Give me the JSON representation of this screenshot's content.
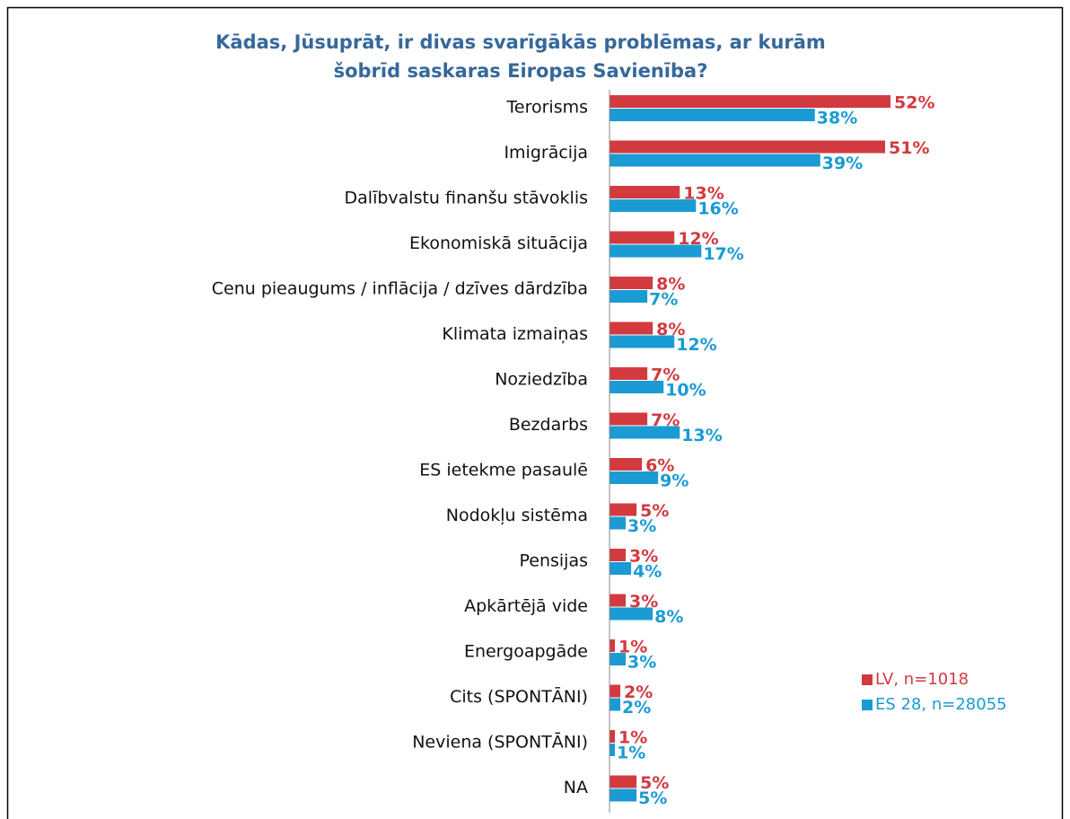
{
  "chart_data": {
    "type": "bar",
    "orientation": "horizontal",
    "title": [
      "Kādas, Jūsuprāt, ir divas svarīgākās problēmas, ar kurām",
      "šobrīd saskaras Eiropas Savienība?"
    ],
    "categories": [
      "Terorisms",
      "Imigrācija",
      "Dalībvalstu finanšu stāvoklis",
      "Ekonomiskā situācija",
      "Cenu pieaugums / inflācija / dzīves dārdzība",
      "Klimata izmaiņas",
      "Noziedzība",
      "Bezdarbs",
      "ES ietekme pasaulē",
      "Nodokļu sistēma",
      "Pensijas",
      "Apkārtējā vide",
      "Energoapgāde",
      "Cits (SPONTĀNI)",
      "Neviena (SPONTĀNI)",
      "NA"
    ],
    "series": [
      {
        "name": "LV, n=1018",
        "color": "#d23a3f",
        "values": [
          52,
          51,
          13,
          12,
          8,
          8,
          7,
          7,
          6,
          5,
          3,
          3,
          1,
          2,
          1,
          5
        ],
        "value_labels": [
          "52%",
          "51%",
          "13%",
          "12%",
          "8%",
          "8%",
          "7%",
          "7%",
          "6%",
          "5%",
          "3%",
          "3%",
          "1%",
          "2%",
          "1%",
          "5%"
        ]
      },
      {
        "name": "ES 28, n=28055",
        "color": "#1a9bd3",
        "values": [
          38,
          39,
          16,
          17,
          7,
          12,
          10,
          13,
          9,
          3,
          4,
          8,
          3,
          2,
          1,
          5
        ],
        "value_labels": [
          "38%",
          "39%",
          "16%",
          "17%",
          "7%",
          "12%",
          "10%",
          "13%",
          "9%",
          "3%",
          "4%",
          "8%",
          "3%",
          "2%",
          "1%",
          "5%"
        ]
      }
    ],
    "legend": "bottom-right"
  }
}
